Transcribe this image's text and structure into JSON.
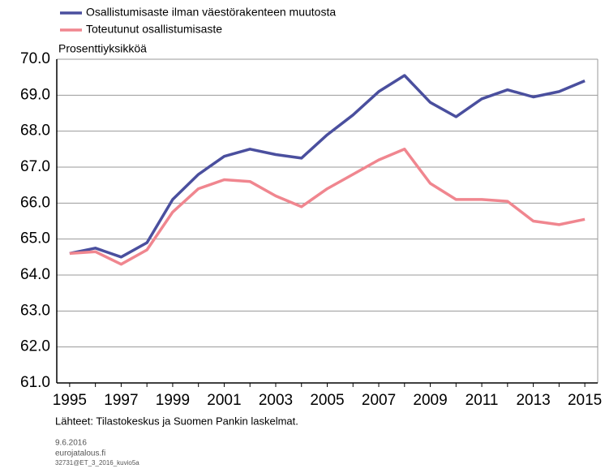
{
  "chart_data": {
    "type": "line",
    "unit_label": "Prosenttiyksikköä",
    "source": "Lähteet: Tilastokeskus ja Suomen Pankin laskelmat.",
    "date": "9.6.2016",
    "site": "eurojatalous.fi",
    "code": "32731@ET_3_2016_kuvio5a",
    "categories": [
      "1995",
      null,
      "1997",
      null,
      "1999",
      null,
      "2001",
      null,
      "2003",
      null,
      "2005",
      null,
      "2007",
      null,
      "2009",
      null,
      "2011",
      null,
      "2013",
      null,
      "2015"
    ],
    "series": [
      {
        "name": "Osallistumisaste ilman väestörakenteen muutosta",
        "color": "#4a4f9e",
        "values": [
          64.6,
          64.75,
          64.5,
          64.9,
          66.1,
          66.8,
          67.3,
          67.5,
          67.35,
          67.25,
          67.9,
          68.45,
          69.1,
          69.55,
          68.8,
          68.4,
          68.9,
          69.15,
          68.95,
          69.1,
          69.4
        ]
      },
      {
        "name": "Toteutunut osallistumisaste",
        "color": "#f0868f",
        "values": [
          64.6,
          64.65,
          64.3,
          64.7,
          65.75,
          66.4,
          66.65,
          66.6,
          66.2,
          65.9,
          66.4,
          66.8,
          67.2,
          67.5,
          66.55,
          66.1,
          66.1,
          66.05,
          65.5,
          65.4,
          65.55
        ]
      }
    ],
    "ylim": [
      61,
      70
    ],
    "yticks": [
      {
        "value": 61,
        "label": "61.0"
      },
      {
        "value": 62,
        "label": "62.0"
      },
      {
        "value": 63,
        "label": "63.0"
      },
      {
        "value": 64,
        "label": "64.0"
      },
      {
        "value": 65,
        "label": "65.0"
      },
      {
        "value": 66,
        "label": "66.0"
      },
      {
        "value": 67,
        "label": "67.0"
      },
      {
        "value": 68,
        "label": "68.0"
      },
      {
        "value": 69,
        "label": "69.0"
      },
      {
        "value": 70,
        "label": "70.0"
      }
    ],
    "grid": true
  }
}
